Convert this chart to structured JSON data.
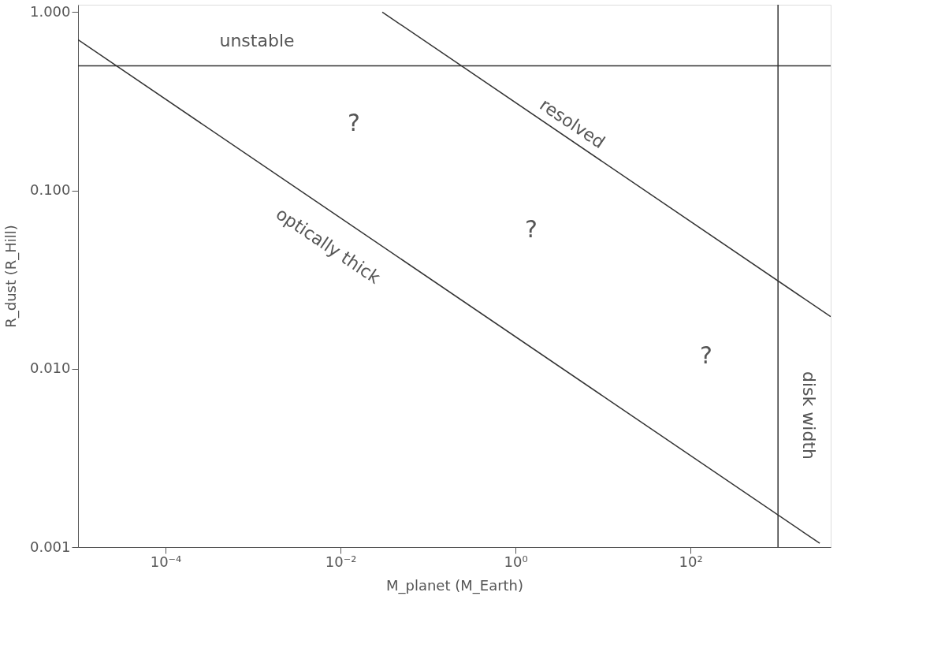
{
  "chart_data": {
    "type": "line",
    "xlabel": "M_planet (M_Earth)",
    "ylabel": "R_dust (R_Hill)",
    "log": "xy",
    "grid": false,
    "marker": "none",
    "line_style": "solid",
    "xlim": [
      1e-05,
      4000
    ],
    "ylim": [
      0.001,
      1.1
    ],
    "xticks": [
      {
        "value": 0.0001,
        "label": "10⁻⁴"
      },
      {
        "value": 0.01,
        "label": "10⁻²"
      },
      {
        "value": 1,
        "label": "10⁰"
      },
      {
        "value": 100,
        "label": "10²"
      }
    ],
    "yticks": [
      {
        "value": 0.001,
        "label": "0.001"
      },
      {
        "value": 0.01,
        "label": "0.010"
      },
      {
        "value": 0.1,
        "label": "0.100"
      },
      {
        "value": 1,
        "label": "1.000"
      }
    ],
    "series": [
      {
        "color": "#333333",
        "x": [
          1e-05,
          3000
        ],
        "values": [
          0.7,
          0.00105
        ]
      },
      {
        "color": "#333333",
        "x": [
          0.03,
          4000
        ],
        "values": [
          1.0,
          0.0196
        ]
      }
    ],
    "ref_lines": [
      {
        "axis": "y",
        "value": 0.5,
        "color": "#333333"
      },
      {
        "axis": "x",
        "value": 1000,
        "color": "#333333"
      }
    ],
    "annotations": [
      "unstable",
      "resolved",
      "optically thick",
      "disk width",
      "?",
      "?",
      "?"
    ]
  }
}
